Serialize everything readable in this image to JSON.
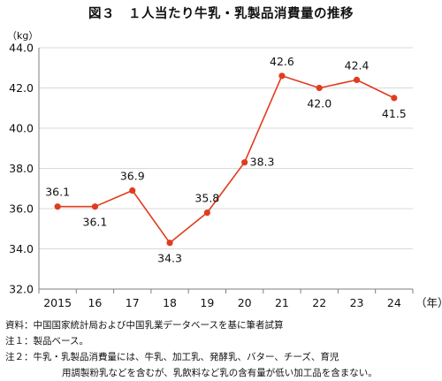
{
  "chart_data": {
    "type": "line",
    "title": "図３　１人当たり牛乳・乳製品消費量の推移",
    "y_unit": "（kg）",
    "x_unit": "（年）",
    "x": [
      "2015",
      "16",
      "17",
      "18",
      "19",
      "20",
      "21",
      "22",
      "23",
      "24"
    ],
    "values": [
      36.1,
      36.1,
      36.9,
      34.3,
      35.8,
      38.3,
      42.6,
      42.0,
      42.4,
      41.5
    ],
    "data_labels": [
      "36.1",
      "36.1",
      "36.9",
      "34.3",
      "35.8",
      "38.3",
      "42.6",
      "42.0",
      "42.4",
      "41.5"
    ],
    "y_ticks": [
      "32.0",
      "34.0",
      "36.0",
      "38.0",
      "40.0",
      "42.0",
      "44.0"
    ],
    "ylim": [
      32,
      44
    ],
    "grid": true,
    "line_color": "#e03c1f",
    "grid_color": "#d9d9d9"
  },
  "notes": {
    "source": "資料：中国国家統計局および中国乳業データベースを基に筆者試算",
    "note1": "注１：製品ベース。",
    "note2_line1": "注２：牛乳・乳製品消費量には、牛乳、加工乳、発酵乳、バター、チーズ、育児",
    "note2_line2": "用調製粉乳などを含むが、乳飲料など乳の含有量が低い加工品を含まない。"
  }
}
